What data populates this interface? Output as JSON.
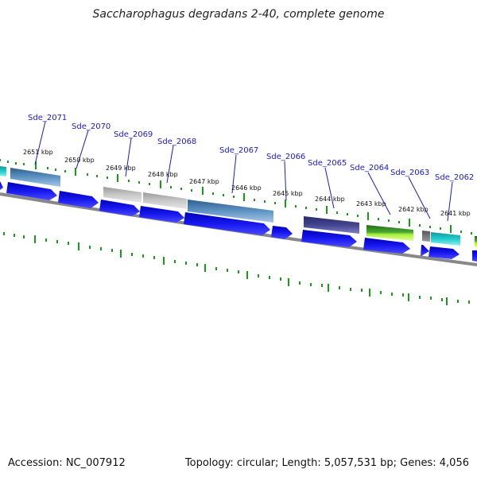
{
  "title": "Saccharophagus degradans 2-40, complete genome",
  "footer": {
    "accession": "Accession: NC_007912",
    "topology": "Topology: circular; Length: 5,057,531 bp; Genes: 4,056"
  },
  "genome": {
    "kbp_labels": [
      "2651 kbp",
      "2650 kbp",
      "2649 kbp",
      "2648 kbp",
      "2647 kbp",
      "2646 kbp",
      "2645 kbp",
      "2644 kbp",
      "2643 kbp",
      "2642 kbp",
      "2641 kbp"
    ],
    "gene_labels": [
      "Sde_2071",
      "Sde_2070",
      "Sde_2069",
      "Sde_2068",
      "Sde_2067",
      "Sde_2066",
      "Sde_2065",
      "Sde_2064",
      "Sde_2063",
      "Sde_2062"
    ],
    "feature_colors": {
      "steelblue": "#4a7fb0",
      "gray": "#b4b4b4",
      "darkpurple": "#3a3a80",
      "green": "#3a9a2a",
      "lime": "#aaf040",
      "cyan": "#22c4c4",
      "darkgray": "#777777",
      "cds_blue": "#1010e0",
      "tick_green": "#1a9a1a",
      "backbone": "#888888"
    }
  }
}
